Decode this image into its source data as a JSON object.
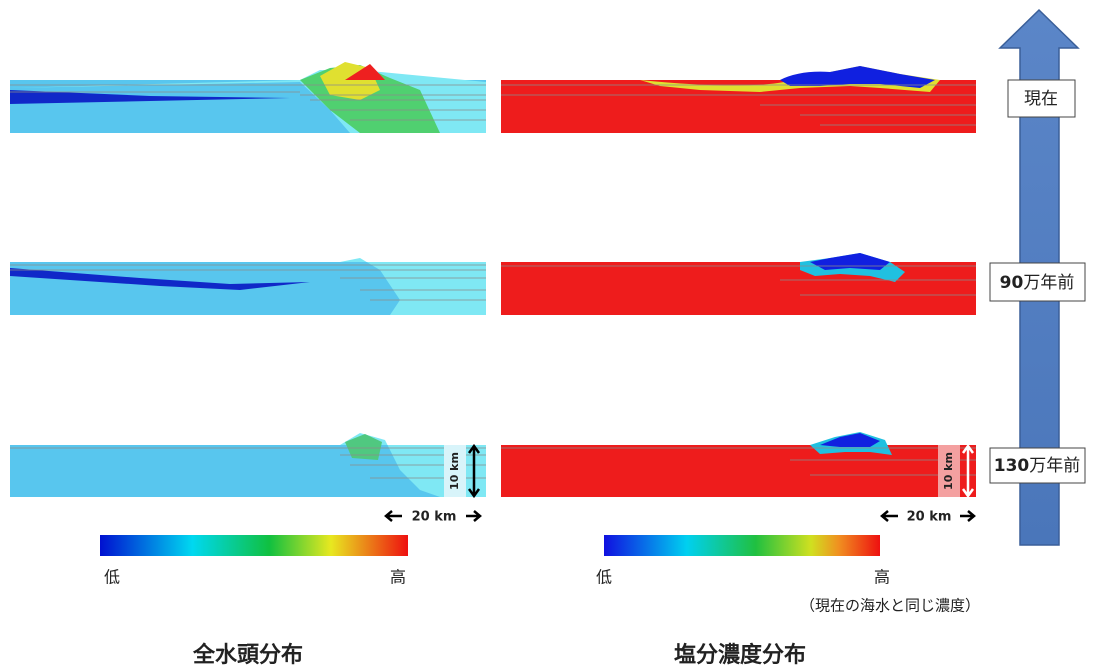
{
  "time_labels": [
    {
      "text": "現在"
    },
    {
      "number": "90",
      "unit": "万年前"
    },
    {
      "number": "130",
      "unit": "万年前"
    }
  ],
  "scale": {
    "vertical": "10 km",
    "horizontal": "20 km"
  },
  "legends": [
    {
      "low": "低",
      "high": "高",
      "title": "全水頭分布"
    },
    {
      "low": "低",
      "high": "高",
      "note": "（現在の海水と同じ濃度）",
      "title": "塩分濃度分布"
    }
  ]
}
